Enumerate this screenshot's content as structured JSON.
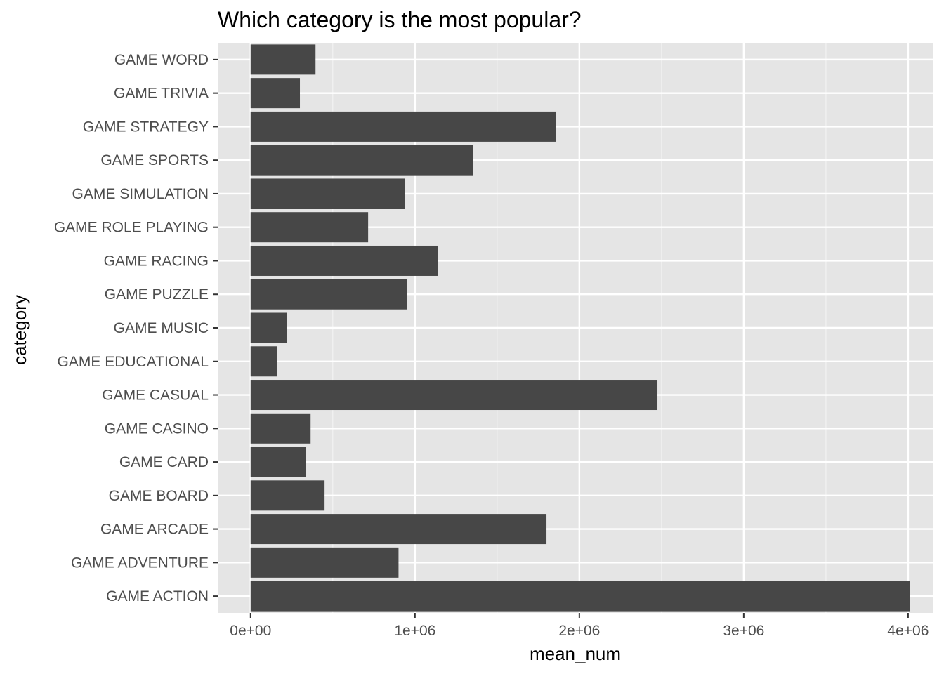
{
  "chart_data": {
    "type": "bar",
    "orientation": "horizontal",
    "title": "Which category is the most popular?",
    "xlabel": "mean_num",
    "ylabel": "category",
    "xlim": [
      -200000,
      4150000
    ],
    "x_ticks": [
      0,
      1000000,
      2000000,
      3000000,
      4000000
    ],
    "x_tick_labels": [
      "0e+00",
      "1e+06",
      "2e+06",
      "3e+06",
      "4e+06"
    ],
    "grid": true,
    "categories": [
      "GAME ACTION",
      "GAME ADVENTURE",
      "GAME ARCADE",
      "GAME BOARD",
      "GAME CARD",
      "GAME CASINO",
      "GAME CASUAL",
      "GAME EDUCATIONAL",
      "GAME MUSIC",
      "GAME PUZZLE",
      "GAME RACING",
      "GAME ROLE PLAYING",
      "GAME SIMULATION",
      "GAME SPORTS",
      "GAME STRATEGY",
      "GAME TRIVIA",
      "GAME WORD"
    ],
    "values": [
      4010000,
      900000,
      1800000,
      450000,
      335000,
      365000,
      2475000,
      160000,
      220000,
      950000,
      1140000,
      715000,
      938000,
      1355000,
      1858000,
      300000,
      395000
    ],
    "colors": {
      "bar": "#474747",
      "panel": "#e5e5e5",
      "grid_major": "#ffffff",
      "grid_minor": "#f2f2f2",
      "tick": "#333333"
    }
  }
}
